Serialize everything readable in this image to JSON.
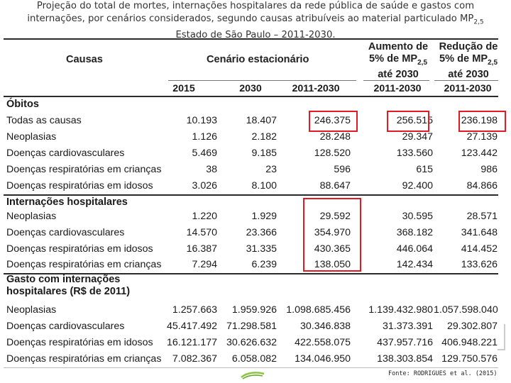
{
  "caption": {
    "line1": "Projeção do total de mortes, internações hospitalares da rede pública de saúde e gastos com",
    "line2_pre": "internações, por cenários considerados, segundo causas atribuíveis ao material particulado MP",
    "line2_sub": "2,5",
    "line3": "Estado de São Paulo – 2011-2030."
  },
  "header": {
    "causas": "Causas",
    "cenario": "Cenário estacionário",
    "aumento_l1": "Aumento de",
    "aumento_l2": "5% de MP",
    "aumento_sub": "2,5",
    "aumento_l3": "até 2030",
    "reducao_l1": "Redução de",
    "reducao_l2": "5% de MP",
    "reducao_sub": "2,5",
    "reducao_l3": "até 2030",
    "years": [
      "2015",
      "2030",
      "2011-2030",
      "2011-2030",
      "2011-2030"
    ]
  },
  "sections": {
    "obitos": "Óbitos",
    "internacoes": "Internações hospitalares",
    "gasto_l1": "Gasto com internações",
    "gasto_l2": "hospitalares (R$ de 2011)"
  },
  "obitos_rows": [
    {
      "label": "Todas as causas",
      "v": [
        "10.193",
        "18.407",
        "246.375",
        "256.515",
        "236.198"
      ]
    },
    {
      "label": "Neoplasias",
      "v": [
        "1.126",
        "2.182",
        "28.248",
        "29.347",
        "27.139"
      ]
    },
    {
      "label": "Doenças cardiovasculares",
      "v": [
        "5.469",
        "9.185",
        "128.520",
        "133.560",
        "123.442"
      ]
    },
    {
      "label": "Doenças respiratórias em crianças",
      "v": [
        "38",
        "23",
        "596",
        "615",
        "986"
      ]
    },
    {
      "label": "Doenças respiratórias em idosos",
      "v": [
        "3.026",
        "8.100",
        "88.647",
        "92.400",
        "84.866"
      ]
    }
  ],
  "internacoes_rows": [
    {
      "label": "Neoplasias",
      "v": [
        "1.220",
        "1.929",
        "29.592",
        "30.595",
        "28.571"
      ]
    },
    {
      "label": "Doenças cardiovasculares",
      "v": [
        "14.570",
        "23.366",
        "354.970",
        "368.182",
        "341.648"
      ]
    },
    {
      "label": "Doenças respiratórias em idosos",
      "v": [
        "16.387",
        "31.335",
        "430.365",
        "446.064",
        "414.452"
      ]
    },
    {
      "label": "Doenças respiratórias em crianças",
      "v": [
        "7.294",
        "6.239",
        "138.050",
        "142.434",
        "133.626"
      ]
    }
  ],
  "gasto_rows": [
    {
      "label": "Neoplasias",
      "v": [
        "1.257.663",
        "1.959.926",
        "1.098.685.456",
        "1.139.432.980",
        "1.057.598.040"
      ]
    },
    {
      "label": "Doenças cardiovasculares",
      "v": [
        "45.417.492",
        "71.298.581",
        "30.346.838",
        "31.373.391",
        "29.302.807"
      ]
    },
    {
      "label": "Doenças respiratórias em idosos",
      "v": [
        "16.121.177",
        "30.626.632",
        "422.558.075",
        "437.957.716",
        "406.948.221"
      ]
    },
    {
      "label": "Doenças respiratórias em crianças",
      "v": [
        "7.082.367",
        "6.058.082",
        "134.046.950",
        "138.303.854",
        "129.750.576"
      ]
    }
  ],
  "footer": "Fonte: RODRIGUES et al. (2015)",
  "colors": {
    "highlight": "#e01b24",
    "leaf": "#8cc63f"
  }
}
